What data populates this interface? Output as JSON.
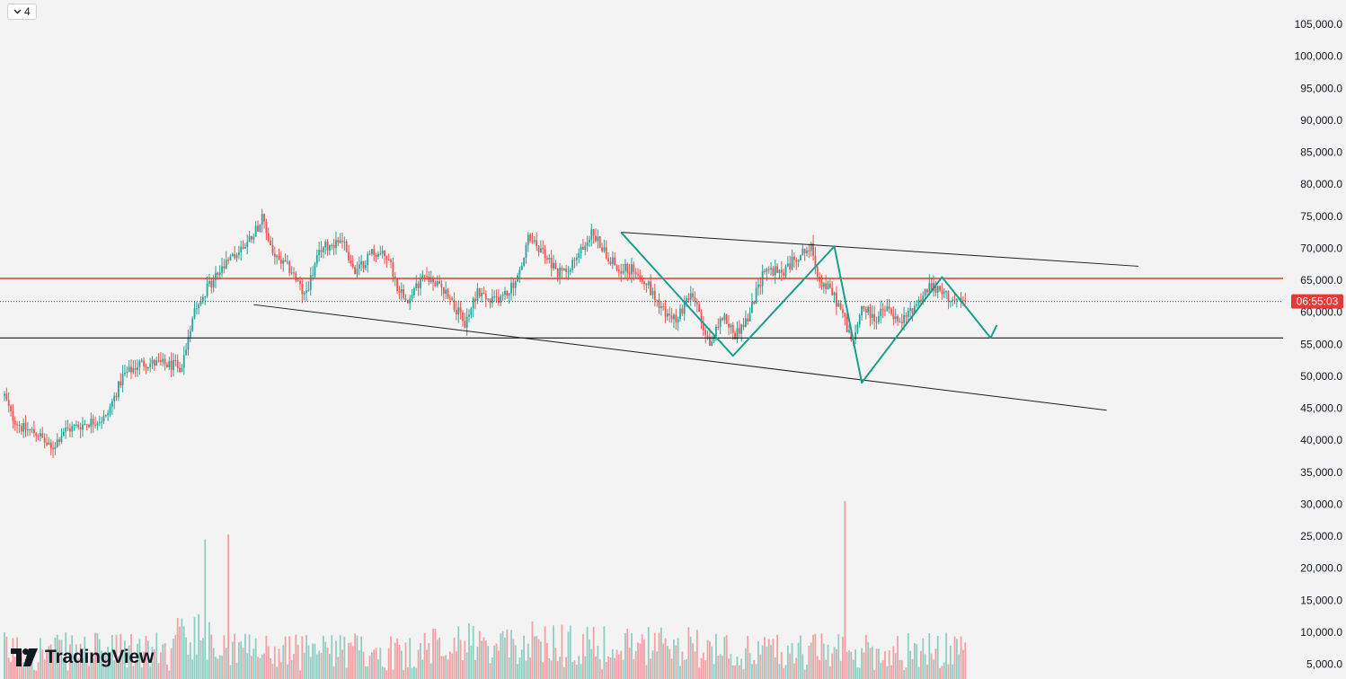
{
  "toolbar": {
    "layout_count": "4"
  },
  "brand": {
    "name": "TradingView"
  },
  "price_label": {
    "countdown": "06:55:03"
  },
  "colors": {
    "up": "#26a69a",
    "down": "#ef5350",
    "up_vol": "#8fcfc3",
    "down_vol": "#f4a0a4",
    "resistance": "#e53935",
    "support": "#000000",
    "channel": "#1e1e1e",
    "pattern": "#17a18c",
    "label_bg": "#e53935",
    "axis_text": "#131722"
  },
  "chart_data": {
    "type": "candlestick",
    "symbol": "",
    "y_axis_ticks": [
      "105,000.0",
      "100,000.0",
      "95,000.0",
      "90,000.0",
      "85,000.0",
      "80,000.0",
      "75,000.0",
      "70,000.0",
      "65,000.0",
      "60,000.0",
      "55,000.0",
      "50,000.0",
      "45,000.0",
      "40,000.0",
      "35,000.0",
      "30,000.0",
      "25,000.0",
      "20,000.0",
      "15,000.0",
      "10,000.0",
      "5,000.0"
    ],
    "y_axis_values": [
      105000,
      100000,
      95000,
      90000,
      85000,
      80000,
      75000,
      70000,
      65000,
      60000,
      55000,
      50000,
      45000,
      40000,
      35000,
      30000,
      25000,
      20000,
      15000,
      10000,
      5000
    ],
    "ylim": [
      2700,
      107000
    ],
    "candle_count": 272,
    "price_anchors": [
      [
        0,
        47000
      ],
      [
        3,
        44000
      ],
      [
        8,
        42000
      ],
      [
        16,
        41000
      ],
      [
        22,
        38500
      ],
      [
        28,
        41500
      ],
      [
        40,
        42800
      ],
      [
        48,
        43500
      ],
      [
        56,
        50000
      ],
      [
        64,
        52000
      ],
      [
        72,
        52000
      ],
      [
        84,
        51500
      ],
      [
        90,
        61000
      ],
      [
        100,
        65500
      ],
      [
        108,
        68500
      ],
      [
        115,
        71000
      ],
      [
        122,
        74500
      ],
      [
        128,
        68500
      ],
      [
        136,
        66500
      ],
      [
        142,
        62500
      ],
      [
        150,
        70000
      ],
      [
        160,
        71500
      ],
      [
        166,
        66000
      ],
      [
        174,
        69500
      ],
      [
        182,
        68500
      ],
      [
        186,
        64000
      ],
      [
        192,
        62000
      ],
      [
        198,
        66000
      ],
      [
        210,
        63000
      ],
      [
        218,
        58000
      ],
      [
        224,
        63500
      ],
      [
        230,
        61500
      ],
      [
        238,
        63000
      ],
      [
        244,
        66000
      ],
      [
        248,
        71500
      ],
      [
        256,
        69000
      ],
      [
        262,
        66000
      ],
      [
        270,
        68000
      ],
      [
        278,
        72500
      ],
      [
        290,
        67000
      ],
      [
        300,
        66500
      ],
      [
        316,
        58500
      ],
      [
        326,
        62500
      ],
      [
        334,
        55000
      ],
      [
        340,
        59500
      ],
      [
        346,
        56500
      ],
      [
        352,
        59000
      ],
      [
        360,
        67000
      ],
      [
        368,
        66000
      ],
      [
        376,
        69000
      ],
      [
        382,
        70000
      ],
      [
        386,
        65000
      ],
      [
        392,
        63000
      ],
      [
        396,
        60500
      ],
      [
        402,
        55000
      ],
      [
        406,
        61000
      ],
      [
        412,
        59000
      ],
      [
        418,
        60500
      ],
      [
        424,
        58000
      ],
      [
        432,
        61500
      ],
      [
        438,
        64000
      ],
      [
        444,
        63000
      ],
      [
        452,
        61500
      ],
      [
        455,
        61700
      ]
    ],
    "current_price": 61700,
    "volume": {
      "ylim": [
        2700,
        32000
      ],
      "spike_index": 398,
      "spike_value": 30500
    },
    "horizontal_lines": [
      {
        "name": "resistance",
        "price": 65300
      },
      {
        "name": "support",
        "price": 56000
      }
    ],
    "trend_lines": [
      {
        "name": "channel-top",
        "points": [
          [
            292,
            72500
          ],
          [
            537,
            67200
          ]
        ]
      },
      {
        "name": "channel-bottom",
        "points": [
          [
            118,
            61200
          ],
          [
            522,
            44700
          ]
        ]
      }
    ],
    "pattern_points": [
      [
        292,
        72500
      ],
      [
        345,
        53200
      ],
      [
        393,
        70300
      ],
      [
        406,
        49000
      ],
      [
        444,
        65500
      ],
      [
        467,
        56000
      ]
    ],
    "pattern_arrow_tip": [
      470,
      58000
    ]
  }
}
